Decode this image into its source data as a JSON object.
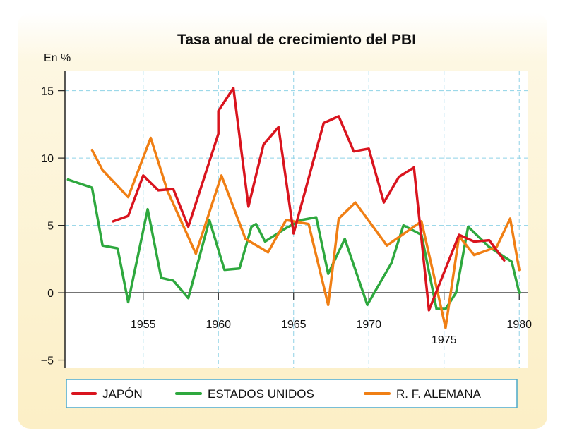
{
  "chart_data": {
    "type": "line",
    "title": "Tasa anual de crecimiento del PBI",
    "ylabel": "En %",
    "xlabel": "",
    "xlim": [
      1949.8,
      1980.6
    ],
    "ylim": [
      -5.6,
      16.5
    ],
    "yticks": [
      15,
      10,
      5,
      0,
      -5
    ],
    "ytick_labels": [
      "15",
      "10",
      "5",
      "0",
      "−5"
    ],
    "xticks": [
      1955,
      1960,
      1965,
      1970,
      1975,
      1980
    ],
    "grid": true,
    "legend_position": "bottom",
    "colors": {
      "background": "#fdf5dd",
      "grid": "#8fd2e6",
      "axis": "#222222",
      "legend_border": "#4aa8c8"
    },
    "series": [
      {
        "name": "JAPÓN",
        "color": "#d9141e",
        "x": [
          1953,
          1954,
          1955,
          1956,
          1957,
          1958,
          1960,
          1960,
          1961,
          1962,
          1963,
          1964,
          1965,
          1967,
          1968,
          1969,
          1970,
          1971,
          1972,
          1973,
          1974,
          1975,
          1976,
          1977,
          1978,
          1979
        ],
        "y": [
          5.3,
          5.7,
          8.7,
          7.6,
          7.7,
          4.9,
          11.8,
          13.5,
          15.2,
          6.4,
          11.0,
          12.3,
          4.4,
          12.6,
          13.1,
          10.5,
          10.7,
          6.7,
          8.6,
          9.3,
          -1.3,
          1.5,
          4.3,
          3.8,
          3.9,
          2.4
        ]
      },
      {
        "name": "ESTADOS UNIDOS",
        "color": "#2ea83e",
        "x": [
          1950,
          1951.6,
          1952.3,
          1953.3,
          1954,
          1955.3,
          1956.2,
          1957,
          1958,
          1959.4,
          1960.4,
          1961.4,
          1962.2,
          1962.5,
          1963.1,
          1964.5,
          1965.5,
          1966.5,
          1967.3,
          1968.4,
          1969.9,
          1971.5,
          1972.3,
          1973.5,
          1974.5,
          1975.1,
          1975.8,
          1976.6,
          1978,
          1979.5,
          1980
        ],
        "y": [
          8.4,
          7.8,
          3.5,
          3.3,
          -0.7,
          6.2,
          1.1,
          0.9,
          -0.4,
          5.4,
          1.7,
          1.8,
          4.9,
          5.1,
          3.8,
          4.8,
          5.4,
          5.6,
          1.4,
          4.0,
          -0.9,
          2.2,
          5.0,
          4.3,
          -1.2,
          -1.2,
          0.0,
          4.9,
          3.4,
          2.3,
          0.0
        ]
      },
      {
        "name": "R. F. ALEMANA",
        "color": "#f07f14",
        "x": [
          1951.6,
          1952.3,
          1954,
          1955.5,
          1956.6,
          1958.5,
          1960.2,
          1961.8,
          1963.3,
          1964.5,
          1966,
          1967.3,
          1968,
          1969.1,
          1971.2,
          1973.5,
          1974.5,
          1975.1,
          1976,
          1977,
          1978.5,
          1979.4,
          1980
        ],
        "y": [
          10.6,
          9.1,
          7.1,
          11.5,
          7.6,
          2.9,
          8.7,
          4.0,
          3.0,
          5.4,
          5.1,
          -0.9,
          5.5,
          6.7,
          3.5,
          5.3,
          0.4,
          -2.6,
          4.2,
          2.8,
          3.4,
          5.5,
          1.7
        ]
      }
    ]
  }
}
